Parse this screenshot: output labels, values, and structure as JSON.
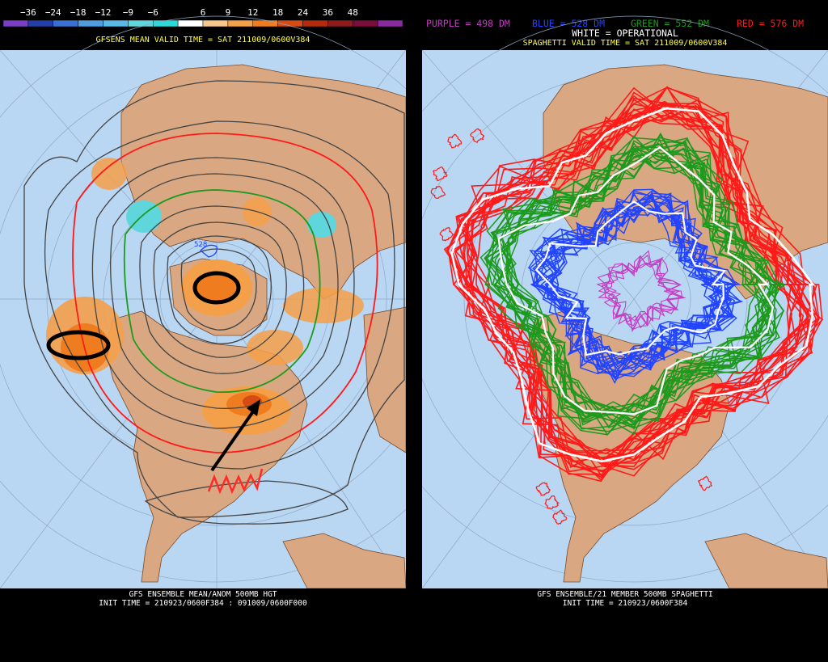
{
  "left": {
    "colorbar": {
      "labels": [
        "−36",
        "−24",
        "−18",
        "−12",
        "−9",
        "−6",
        "6",
        "9",
        "12",
        "18",
        "24",
        "36",
        "48"
      ],
      "colors": [
        "#7b3fc7",
        "#2040a8",
        "#3a6fd6",
        "#4f9de0",
        "#58b8e8",
        "#5fd6dc",
        "#2bd9d9",
        "#ffffff",
        "#f7c78e",
        "#f4a04a",
        "#ef7d1f",
        "#d64b13",
        "#b52a0c",
        "#8e1c1c",
        "#7a0d3a",
        "#8a2aa0"
      ]
    },
    "valid_time": "GFSENS MEAN VALID TIME = SAT 211009/0600V384",
    "contour_label": "528",
    "footer_line1": "GFS ENSEMBLE MEAN/ANOM 500MB HGT",
    "footer_line2": "INIT TIME = 210923/0600F384 : 091009/0600F000"
  },
  "right": {
    "legend": {
      "purple": "PURPLE = 498 DM",
      "blue": "BLUE = 528 DM",
      "green": "GREEN = 552 DM",
      "red": "RED = 576 DM",
      "white": "WHITE = OPERATIONAL"
    },
    "valid_time": "SPAGHETTI VALID TIME = SAT 211009/0600V384",
    "footer_line1": "GFS ENSEMBLE/21 MEMBER 500MB SPAGHETTI",
    "footer_line2": "INIT TIME = 210923/0600F384"
  },
  "colors": {
    "ocean": "#b9d6f2",
    "land": "#d9a882",
    "purple": "#c43cc4",
    "blue": "#2244ff",
    "green": "#1d9a1d",
    "red": "#ff1a1a",
    "white": "#ffffff",
    "yellow": "#ffff3a"
  }
}
